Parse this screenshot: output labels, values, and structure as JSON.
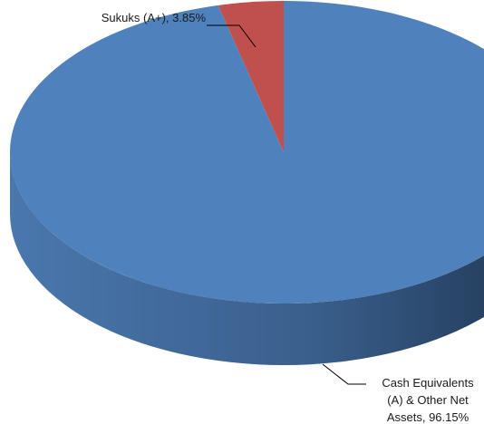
{
  "chart_data": {
    "type": "pie",
    "style": "3d",
    "title": "",
    "slices": [
      {
        "label": "Cash Equivalents (A) & Other Net Assets, 96.15%",
        "value": 96.15,
        "color": "#4f81bd"
      },
      {
        "label": "Sukuks (A+), 3.85%",
        "value": 3.85,
        "color": "#c0504d"
      }
    ]
  },
  "labels": {
    "sukuks": "Sukuks (A+), 3.85%",
    "cash_line1": "Cash Equivalents",
    "cash_line2": "(A) & Other Net",
    "cash_line3": "Assets, 96.15%"
  }
}
